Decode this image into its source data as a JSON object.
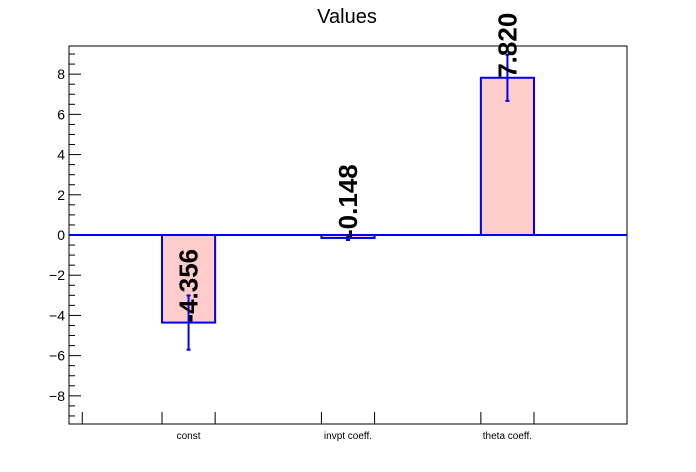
{
  "chart_data": {
    "type": "bar",
    "title": "Values",
    "categories": [
      "const",
      "invpt coeff.",
      "theta coeff."
    ],
    "values": [
      -4.356,
      -0.148,
      7.82
    ],
    "value_labels": [
      "-4.356",
      "-0.148",
      "7.820"
    ],
    "errors": [
      1.35,
      0.1,
      1.15
    ],
    "ylim": [
      -9.4,
      9.4
    ],
    "yticks": [
      -8,
      -6,
      -4,
      -2,
      0,
      2,
      4,
      6,
      8
    ],
    "xlabel": "",
    "ylabel": "",
    "grid": false,
    "colors": {
      "bar_fill": "#ffcccc",
      "bar_edge": "#0000ee",
      "error_bar": "#0000ee",
      "zero_line": "#0000ee",
      "axis": "#000000"
    }
  }
}
